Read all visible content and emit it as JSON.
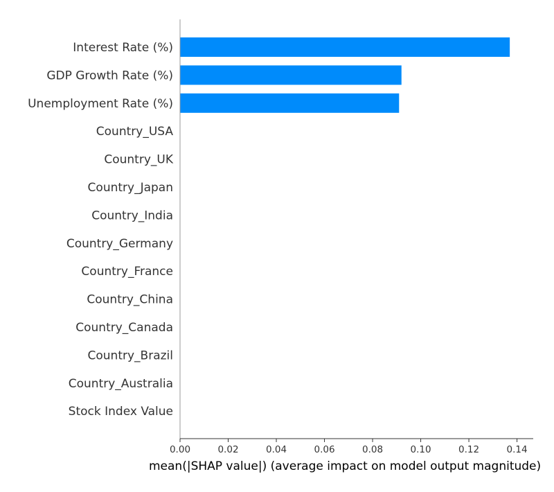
{
  "chart_data": {
    "type": "bar",
    "orientation": "horizontal",
    "title": "",
    "xlabel": "mean(|SHAP value|) (average impact on model output magnitude)",
    "ylabel": "",
    "xlim": [
      0,
      0.143
    ],
    "xticks": [
      0.0,
      0.02,
      0.04,
      0.06,
      0.08,
      0.1,
      0.12,
      0.14
    ],
    "xtick_labels": [
      "0.00",
      "0.02",
      "0.04",
      "0.06",
      "0.08",
      "0.10",
      "0.12",
      "0.14"
    ],
    "categories": [
      "Interest Rate (%)",
      "GDP Growth Rate (%)",
      "Unemployment Rate (%)",
      "Country_USA",
      "Country_UK",
      "Country_Japan",
      "Country_India",
      "Country_Germany",
      "Country_France",
      "Country_China",
      "Country_Canada",
      "Country_Brazil",
      "Country_Australia",
      "Stock Index Value"
    ],
    "values": [
      0.137,
      0.092,
      0.091,
      0,
      0,
      0,
      0,
      0,
      0,
      0,
      0,
      0,
      0,
      0
    ],
    "bar_color": "#008bfb",
    "grid": false,
    "legend": false
  }
}
